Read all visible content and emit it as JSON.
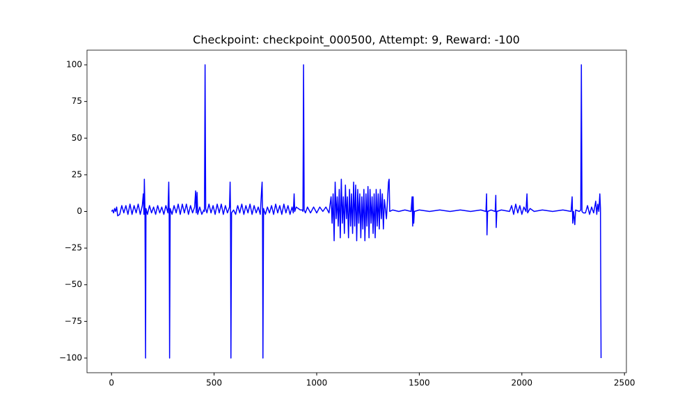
{
  "chart_data": {
    "type": "line",
    "title": "Checkpoint: checkpoint_000500, Attempt: 9, Reward: -100",
    "xlim": [
      -119.5,
      2509.5
    ],
    "ylim": [
      -110,
      110
    ],
    "xticks": [
      0,
      500,
      1000,
      1500,
      2000,
      2500
    ],
    "yticks": [
      {
        "value": -100,
        "label": "−100"
      },
      {
        "value": -75,
        "label": "−75"
      },
      {
        "value": -50,
        "label": "−50"
      },
      {
        "value": -25,
        "label": "−25"
      },
      0,
      25,
      50,
      75,
      100
    ],
    "series": [
      {
        "color": "#0000ff",
        "x": [
          0,
          5,
          10,
          15,
          20,
          25,
          30,
          40,
          50,
          60,
          70,
          80,
          90,
          100,
          110,
          120,
          130,
          140,
          150,
          155,
          158,
          160,
          163,
          166,
          168,
          175,
          185,
          195,
          205,
          215,
          225,
          235,
          245,
          255,
          265,
          275,
          279,
          281,
          283,
          286,
          295,
          305,
          315,
          325,
          335,
          345,
          355,
          365,
          375,
          385,
          395,
          405,
          410,
          413,
          417,
          420,
          430,
          440,
          450,
          453,
          456,
          459,
          465,
          475,
          485,
          495,
          505,
          515,
          525,
          535,
          545,
          555,
          565,
          575,
          578,
          580,
          582,
          585,
          595,
          605,
          615,
          625,
          635,
          645,
          655,
          665,
          675,
          685,
          695,
          705,
          715,
          725,
          732,
          734,
          736,
          738,
          741,
          750,
          760,
          770,
          780,
          790,
          800,
          810,
          820,
          830,
          840,
          850,
          860,
          870,
          880,
          886,
          890,
          893,
          900,
          910,
          920,
          930,
          933,
          936,
          939,
          945,
          955,
          970,
          985,
          1000,
          1015,
          1030,
          1045,
          1060,
          1070,
          1075,
          1080,
          1085,
          1090,
          1095,
          1100,
          1105,
          1110,
          1115,
          1120,
          1125,
          1130,
          1135,
          1140,
          1145,
          1150,
          1155,
          1160,
          1165,
          1170,
          1175,
          1180,
          1185,
          1190,
          1195,
          1200,
          1205,
          1210,
          1215,
          1220,
          1225,
          1230,
          1235,
          1240,
          1245,
          1250,
          1255,
          1260,
          1265,
          1270,
          1275,
          1280,
          1285,
          1290,
          1295,
          1300,
          1305,
          1310,
          1315,
          1320,
          1325,
          1330,
          1340,
          1350,
          1353,
          1356,
          1370,
          1400,
          1430,
          1460,
          1465,
          1468,
          1470,
          1473,
          1476,
          1500,
          1550,
          1600,
          1650,
          1700,
          1750,
          1800,
          1825,
          1828,
          1830,
          1833,
          1850,
          1870,
          1873,
          1875,
          1878,
          1900,
          1940,
          1950,
          1960,
          1970,
          1980,
          1990,
          2000,
          2010,
          2020,
          2025,
          2028,
          2040,
          2060,
          2100,
          2150,
          2200,
          2240,
          2245,
          2248,
          2252,
          2258,
          2262,
          2280,
          2287,
          2290,
          2293,
          2300,
          2310,
          2320,
          2330,
          2340,
          2350,
          2360,
          2365,
          2370,
          2375,
          2380,
          2383,
          2386
        ],
        "values": [
          0,
          1,
          -1,
          2,
          0,
          3,
          -3,
          -2,
          4,
          -1,
          4,
          -2,
          5,
          -2,
          4,
          -1,
          5,
          -2,
          4,
          12,
          -2,
          22,
          0,
          -100,
          2,
          -2,
          4,
          -1,
          3,
          -2,
          4,
          -1,
          3,
          -2,
          4,
          -1,
          20,
          0,
          -100,
          2,
          -2,
          4,
          -1,
          5,
          -2,
          5,
          -1,
          5,
          -2,
          4,
          -1,
          3,
          14,
          -1,
          13,
          -2,
          3,
          -2,
          1,
          0,
          100,
          2,
          -1,
          5,
          -1,
          4,
          -2,
          5,
          -1,
          5,
          -2,
          4,
          -1,
          3,
          20,
          0,
          -100,
          -1,
          1,
          -2,
          4,
          -1,
          5,
          -2,
          4,
          -1,
          5,
          -2,
          4,
          -1,
          3,
          -2,
          16,
          20,
          0,
          -100,
          2,
          -2,
          3,
          -1,
          4,
          -2,
          5,
          -1,
          4,
          -2,
          5,
          -1,
          4,
          -2,
          3,
          -1,
          12,
          0,
          3,
          2,
          1,
          1,
          0,
          100,
          1,
          -1,
          3,
          -1,
          3,
          -1,
          3,
          0,
          3,
          -1,
          10,
          -8,
          12,
          -20,
          20,
          -5,
          10,
          -10,
          15,
          -18,
          22,
          -8,
          10,
          -15,
          18,
          -5,
          10,
          -18,
          15,
          -10,
          12,
          -15,
          20,
          -10,
          18,
          -20,
          15,
          -8,
          12,
          -18,
          10,
          -12,
          15,
          -20,
          12,
          -10,
          17,
          -18,
          15,
          -8,
          10,
          -15,
          12,
          -18,
          15,
          -10,
          12,
          -12,
          15,
          -5,
          12,
          -12,
          8,
          -5,
          20,
          22,
          0,
          1,
          0,
          1,
          0,
          10,
          -10,
          10,
          -8,
          0,
          1,
          0,
          1,
          0,
          1,
          0,
          1,
          0,
          12,
          -16,
          0,
          1,
          0,
          11,
          -11,
          0,
          1,
          0,
          4,
          -2,
          5,
          -1,
          4,
          -2,
          3,
          0,
          12,
          -1,
          2,
          0,
          1,
          0,
          1,
          0,
          10,
          -8,
          0,
          -9,
          1,
          0,
          1,
          100,
          0,
          -1,
          -1,
          4,
          -2,
          3,
          -1,
          7,
          -2,
          5,
          0,
          12,
          2,
          -100
        ]
      }
    ]
  }
}
